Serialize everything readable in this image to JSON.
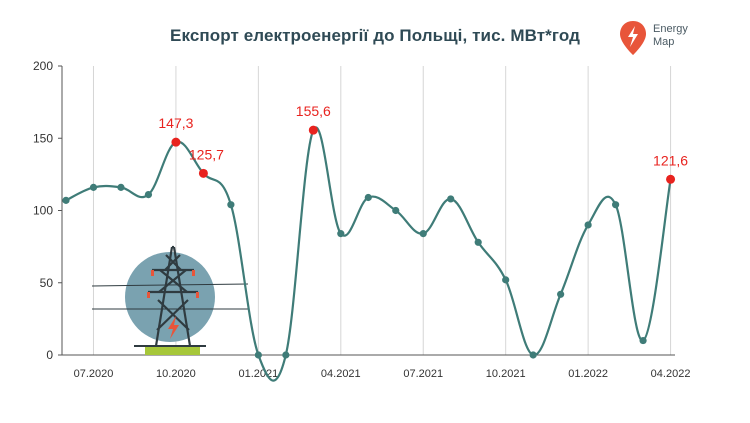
{
  "title": "Експорт електроенергії до Польщі, тис. МВт*год",
  "logo": {
    "line1": "Energy",
    "line2": "Map",
    "icon": "lightning-pin-icon",
    "color": "#e8553a"
  },
  "colors": {
    "line": "#3f7c78",
    "highlight": "#e8231f",
    "grid": "#d6d6d6",
    "illustration_circle": "#7aa2b0",
    "illustration_base": "#a6c73a"
  },
  "chart_data": {
    "type": "line",
    "title": "Експорт електроенергії до Польщі, тис. МВт*год",
    "xlabel": "",
    "ylabel": "",
    "ylim": [
      0,
      200
    ],
    "yticks": [
      "0",
      "50",
      "100",
      "150",
      "200"
    ],
    "xticks": [
      "07.2020",
      "10.2020",
      "01.2021",
      "04.2021",
      "07.2021",
      "10.2021",
      "01.2022",
      "04.2022"
    ],
    "grid": "vertical",
    "points": [
      {
        "x": "06.2020",
        "y": 107
      },
      {
        "x": "07.2020",
        "y": 116
      },
      {
        "x": "08.2020",
        "y": 116
      },
      {
        "x": "09.2020",
        "y": 111
      },
      {
        "x": "10.2020",
        "y": 147.3,
        "label": "147,3",
        "highlight": true
      },
      {
        "x": "11.2020",
        "y": 125.7,
        "label": "125,7",
        "highlight": true
      },
      {
        "x": "12.2020",
        "y": 104
      },
      {
        "x": "01.2021",
        "y": 0
      },
      {
        "x": "02.2021",
        "y": 0
      },
      {
        "x": "03.2021",
        "y": 155.6,
        "label": "155,6",
        "highlight": true
      },
      {
        "x": "04.2021",
        "y": 84
      },
      {
        "x": "05.2021",
        "y": 109
      },
      {
        "x": "06.2021",
        "y": 100
      },
      {
        "x": "07.2021",
        "y": 84
      },
      {
        "x": "08.2021",
        "y": 108
      },
      {
        "x": "09.2021",
        "y": 78
      },
      {
        "x": "10.2021",
        "y": 52
      },
      {
        "x": "11.2021",
        "y": 0
      },
      {
        "x": "12.2021",
        "y": 42
      },
      {
        "x": "01.2022",
        "y": 90
      },
      {
        "x": "02.2022",
        "y": 104
      },
      {
        "x": "03.2022",
        "y": 10
      },
      {
        "x": "04.2022",
        "y": 121.6,
        "label": "121,6",
        "highlight": true
      }
    ]
  }
}
